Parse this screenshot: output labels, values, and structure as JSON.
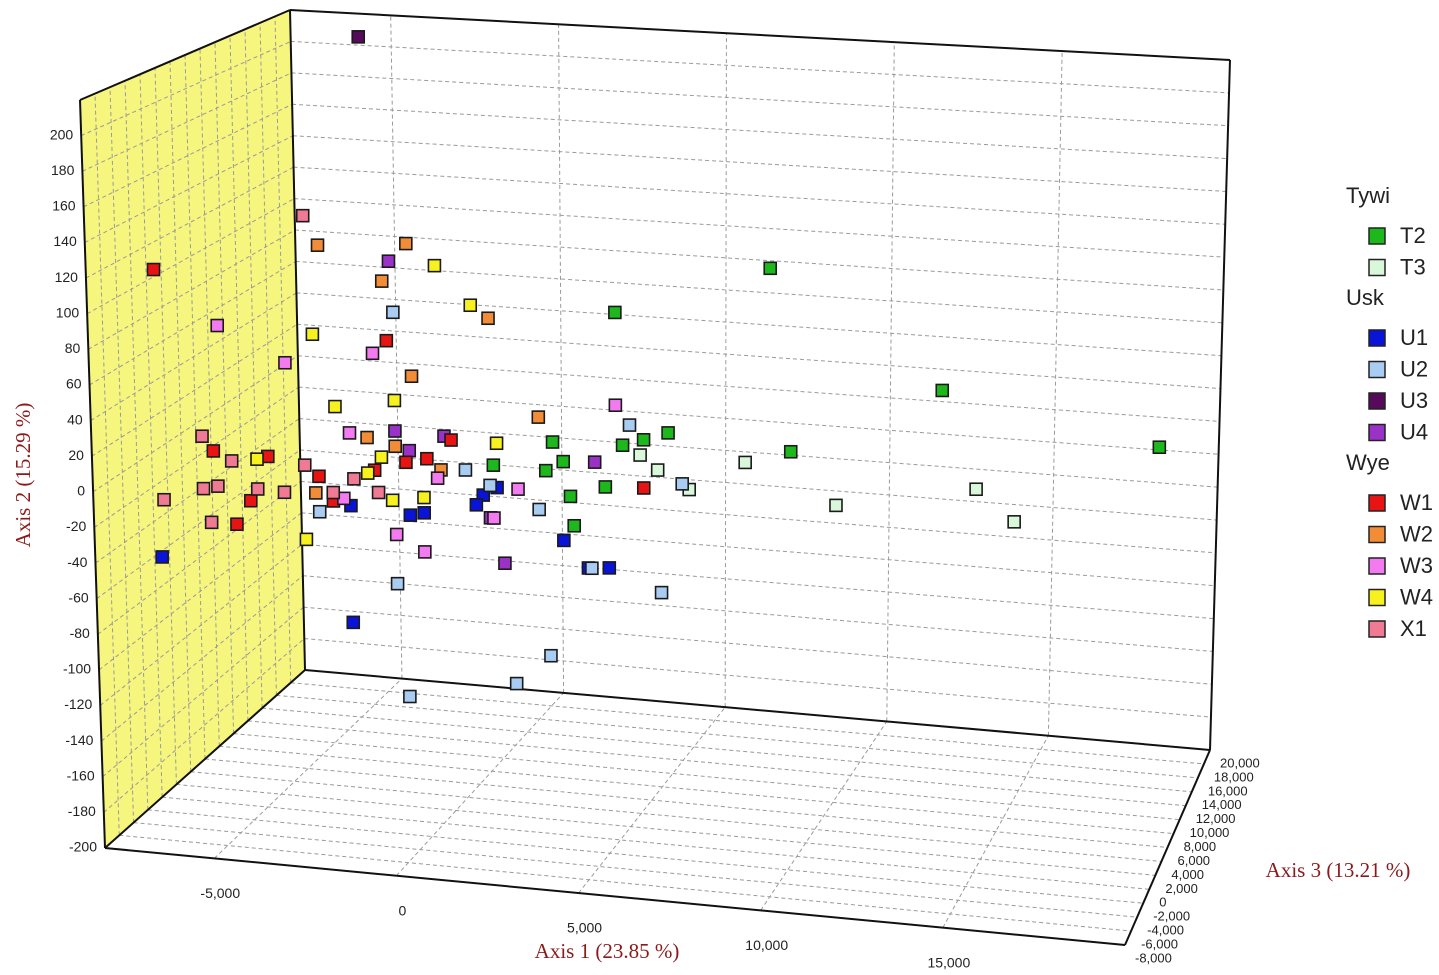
{
  "chart_data": {
    "type": "scatter3d",
    "xlabel": "Axis 1 (23.85 %)",
    "ylabel": "Axis 2 (15.29 %)",
    "zlabel": "Axis 3 (13.21 %)",
    "xlim": [
      -8000,
      20000
    ],
    "ylim": [
      -200,
      220
    ],
    "zlim": [
      -8000,
      20000
    ],
    "xticks": [
      {
        "value": -5000,
        "label": "-5,000"
      },
      0,
      {
        "value": 5000,
        "label": "5,000"
      },
      {
        "value": 10000,
        "label": "10,000"
      },
      {
        "value": 15000,
        "label": "15,000"
      }
    ],
    "yticks": [
      -200,
      -180,
      -160,
      -140,
      -120,
      -100,
      -80,
      -60,
      -40,
      -20,
      0,
      20,
      40,
      60,
      80,
      100,
      120,
      140,
      160,
      180,
      200
    ],
    "zticks": [
      {
        "value": -8000,
        "label": "-8,000"
      },
      {
        "value": -6000,
        "label": "-6,000"
      },
      {
        "value": -4000,
        "label": "-4,000"
      },
      {
        "value": -2000,
        "label": "-2,000"
      },
      0,
      {
        "value": 2000,
        "label": "2,000"
      },
      {
        "value": 4000,
        "label": "4,000"
      },
      {
        "value": 6000,
        "label": "6,000"
      },
      {
        "value": 8000,
        "label": "8,000"
      },
      {
        "value": 10000,
        "label": "10,000"
      },
      {
        "value": 12000,
        "label": "12,000"
      },
      {
        "value": 14000,
        "label": "14,000"
      },
      {
        "value": 16000,
        "label": "16,000"
      },
      {
        "value": 18000,
        "label": "18,000"
      },
      {
        "value": 20000,
        "label": "20,000"
      }
    ],
    "grid": true,
    "wall_color": "#f6f67e",
    "groups": [
      {
        "name": "Tywi",
        "series": [
          {
            "name": "T2",
            "color": "#1cb81c",
            "x": [
              8400,
              4000,
              13300,
              19500,
              9000,
              5500,
              4200,
              2200,
              2000,
              2500,
              2700,
              2800,
              3700,
              500,
              4800
            ],
            "y": [
              113,
              82,
              49,
              25,
              8,
              14,
              5,
              4,
              -13,
              -7,
              -27,
              -44,
              -20,
              -12,
              9
            ],
            "z": [
              6000,
              6000,
              6000,
              6000,
              6000,
              6000,
              6000,
              6000,
              6000,
              6000,
              6000,
              6000,
              6000,
              6000,
              6000
            ]
          },
          {
            "name": "T3",
            "color": "#d9f7d9",
            "x": [
              7700,
              10300,
              14300,
              15400,
              6100,
              5200,
              4700
            ],
            "y": [
              0,
              -21,
              -6,
              -23,
              -18,
              -8,
              0
            ],
            "z": [
              6000,
              6000,
              6000,
              6000,
              6000,
              6000,
              6000
            ]
          }
        ]
      },
      {
        "name": "Usk",
        "series": [
          {
            "name": "U1",
            "color": "#0a14d8",
            "x": [
              -7300,
              -3600,
              2500,
              3800,
              3200,
              200,
              0,
              -1900,
              -1500,
              -3600,
              600
            ],
            "y": [
              -52,
              -111,
              -53,
              -67,
              -68,
              -30,
              -36,
              -45,
              -43,
              -42,
              -25
            ],
            "z": [
              -2400,
              6000,
              6000,
              6000,
              6000,
              6000,
              6000,
              6000,
              6000,
              6000,
              6000
            ]
          },
          {
            "name": "U2",
            "color": "#a9cdf2",
            "x": [
              -2300,
              -4500,
              -2300,
              -2000,
              1100,
              2100,
              5300,
              3300,
              4400,
              1800,
              5900,
              -300,
              400
            ],
            "y": [
              74,
              -47,
              -86,
              -152,
              -139,
              -121,
              -79,
              -68,
              17,
              -36,
              -15,
              -16,
              -24
            ],
            "z": [
              6000,
              6000,
              6000,
              6000,
              6000,
              6000,
              6000,
              6000,
              6000,
              6000,
              6000,
              6000,
              6000
            ]
          },
          {
            "name": "U3",
            "color": "#560a5a",
            "x": [
              -4800
            ],
            "y": [
              218
            ],
            "z": [
              14400
            ]
          },
          {
            "name": "U4",
            "color": "#9b32c8",
            "x": [
              -2400,
              800,
              -900,
              -2300,
              -1900,
              3400,
              400
            ],
            "y": [
              104,
              -69,
              3,
              4,
              -7,
              -6,
              -43
            ],
            "z": [
              6000,
              6000,
              6000,
              6000,
              6000,
              6000,
              6000
            ]
          }
        ]
      },
      {
        "name": "Wye",
        "series": [
          {
            "name": "W1",
            "color": "#e81414",
            "x": [
              -7300,
              -2500,
              4800,
              -5800,
              -5200,
              -4300,
              -4800,
              -4500,
              -4100,
              -700,
              -2900,
              -2000,
              -1400
            ],
            "y": [
              113,
              57,
              -19,
              11,
              -30,
              10,
              -16,
              -26,
              -40,
              1,
              -20,
              -14,
              -11
            ],
            "z": [
              -2400,
              6000,
              6000,
              -2400,
              -2400,
              -2400,
              -2400,
              6000,
              6000,
              6000,
              6000,
              6000,
              6000
            ]
          },
          {
            "name": "W2",
            "color": "#f28c36",
            "x": [
              -1900,
              -4400,
              -2600,
              400,
              -1800,
              1800,
              -3100,
              -2300,
              -4600,
              -1000
            ],
            "y": [
              115,
              111,
              92,
              74,
              37,
              18,
              -1,
              -5,
              -36,
              -17
            ],
            "z": [
              6000,
              6000,
              6000,
              6000,
              6000,
              6000,
              6000,
              6000,
              6000,
              6000
            ]
          },
          {
            "name": "W3",
            "color": "#f37af0",
            "x": [
              -5600,
              -5400,
              -2900,
              -3600,
              4000,
              -1500,
              -2300,
              1200,
              500,
              -3800,
              -1100
            ],
            "y": [
              83,
              40,
              49,
              1,
              28,
              -66,
              -57,
              -25,
              -43,
              -38,
              -22
            ],
            "z": [
              -2400,
              6000,
              6000,
              6000,
              6000,
              6000,
              6000,
              6000,
              6000,
              6000,
              6000
            ]
          },
          {
            "name": "W4",
            "color": "#f7f21e",
            "x": [
              -1100,
              -100,
              -4600,
              -2300,
              -4000,
              -4600,
              -4900,
              600,
              -3100,
              -2400,
              -1500,
              -2700
            ],
            "y": [
              103,
              81,
              58,
              22,
              16,
              8,
              -64,
              1,
              -22,
              -37,
              -34,
              -12
            ],
            "z": [
              6000,
              6000,
              6000,
              6000,
              6000,
              -2400,
              6000,
              6000,
              6000,
              6000,
              6000,
              6000
            ]
          },
          {
            "name": "X1",
            "color": "#f07a94",
            "x": [
              -4800,
              -6100,
              -5300,
              -7200,
              -6100,
              -5700,
              -5900,
              -5500,
              -4600,
              -4900,
              -4100,
              -3500,
              -2800
            ],
            "y": [
              128,
              19,
              6,
              -19,
              -11,
              -9,
              -30,
              -37,
              -9,
              -20,
              -35,
              -26,
              -33
            ],
            "z": [
              6000,
              -2400,
              -2400,
              -2400,
              -2400,
              -2400,
              -2400,
              6000,
              -2400,
              6000,
              6000,
              6000,
              6000
            ]
          }
        ]
      }
    ]
  }
}
